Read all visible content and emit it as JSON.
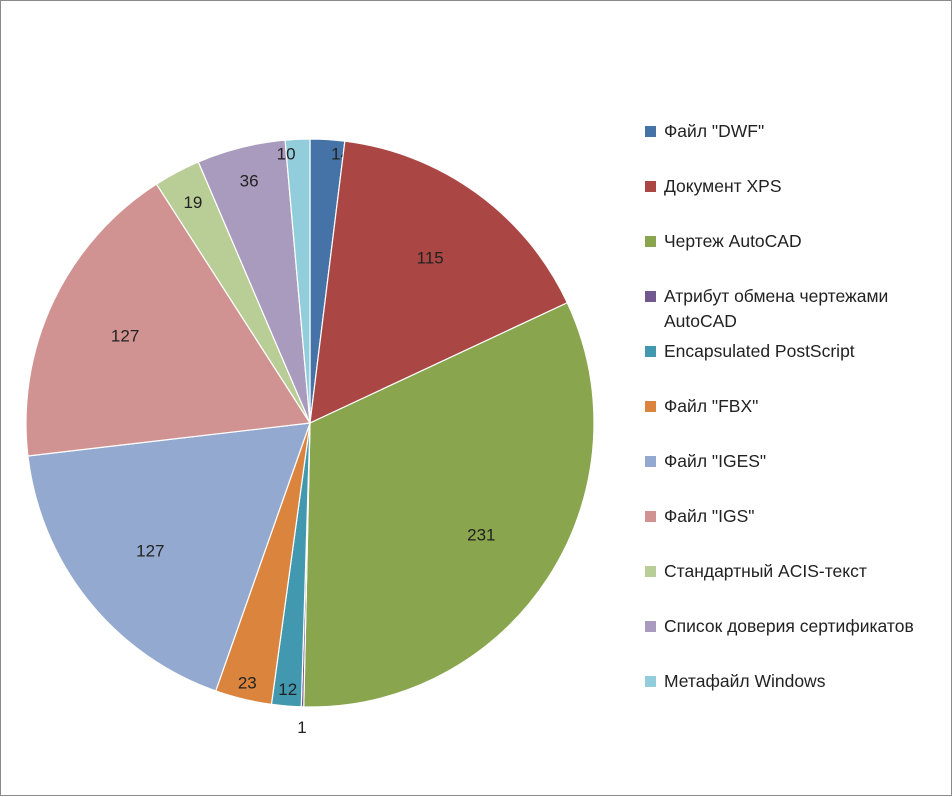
{
  "chart_data": {
    "type": "pie",
    "categories": [
      "Файл \"DWF\"",
      "Документ XPS",
      "Чертеж AutoCAD",
      "Атрибут обмена чертежами AutoCAD",
      "Encapsulated PostScript",
      "Файл \"FBX\"",
      "Файл \"IGES\"",
      "Файл \"IGS\"",
      "Стандартный ACIS-текст",
      "Список доверия сертификатов",
      "Метафайл Windows"
    ],
    "values": [
      14,
      115,
      231,
      1,
      12,
      23,
      127,
      127,
      19,
      36,
      10
    ],
    "data_labels": [
      "14",
      "115",
      "231",
      "1",
      "12",
      "23",
      "127",
      "127",
      "19",
      "36",
      "10"
    ],
    "colors": [
      "#4572A7",
      "#AA4643",
      "#89A54E",
      "#71588F",
      "#4198AF",
      "#DB843D",
      "#93A9CF",
      "#D19392",
      "#B9CD96",
      "#A99BBD",
      "#92CDDC"
    ],
    "start_angle": "top",
    "direction": "clockwise",
    "legend_position": "right"
  }
}
